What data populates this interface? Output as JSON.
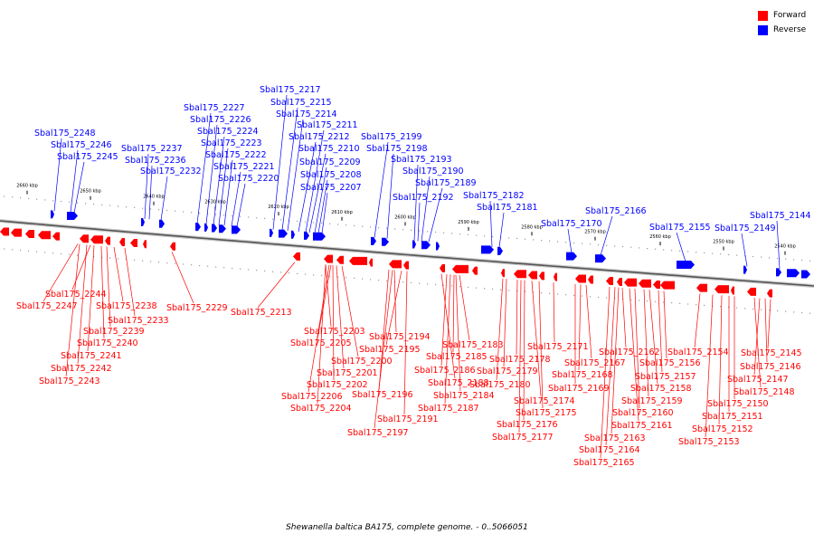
{
  "legend": [
    {
      "label": "Forward",
      "color": "#ff0000"
    },
    {
      "label": "Reverse",
      "color": "#0000ff"
    }
  ],
  "colors": {
    "forward": "#ff0000",
    "reverse": "#0000ff",
    "backbone": "#888888"
  },
  "caption": "Shewanella baltica BA175, complete genome. - 0..5066051",
  "ticks": [
    "2660 kbp",
    "2650 kbp",
    "2640 kbp",
    "2630 kbp",
    "2620 kbp",
    "2610 kbp",
    "2600 kbp",
    "2590 kbp",
    "2580 kbp",
    "2570 kbp",
    "2560 kbp",
    "2550 kbp",
    "2540 kbp"
  ],
  "reverse_labels": [
    "Sbal175_2248",
    "Sbal175_2246",
    "Sbal175_2245",
    "Sbal175_2237",
    "Sbal175_2236",
    "Sbal175_2232",
    "Sbal175_2227",
    "Sbal175_2226",
    "Sbal175_2224",
    "Sbal175_2223",
    "Sbal175_2222",
    "Sbal175_2221",
    "Sbal175_2220",
    "Sbal175_2217",
    "Sbal175_2215",
    "Sbal175_2214",
    "Sbal175_2211",
    "Sbal175_2212",
    "Sbal175_2210",
    "Sbal175_2209",
    "Sbal175_2208",
    "Sbal175_2207",
    "Sbal175_2199",
    "Sbal175_2198",
    "Sbal175_2193",
    "Sbal175_2190",
    "Sbal175_2189",
    "Sbal175_2192",
    "Sbal175_2182",
    "Sbal175_2181",
    "Sbal175_2170",
    "Sbal175_2166",
    "Sbal175_2155",
    "Sbal175_2149",
    "Sbal175_2144"
  ],
  "forward_labels": [
    "Sbal175_2244",
    "Sbal175_2247",
    "Sbal175_2238",
    "Sbal175_2233",
    "Sbal175_2239",
    "Sbal175_2240",
    "Sbal175_2241",
    "Sbal175_2242",
    "Sbal175_2243",
    "Sbal175_2229",
    "Sbal175_2213",
    "Sbal175_2203",
    "Sbal175_2205",
    "Sbal175_2200",
    "Sbal175_2201",
    "Sbal175_2202",
    "Sbal175_2206",
    "Sbal175_2204",
    "Sbal175_2194",
    "Sbal175_2195",
    "Sbal175_2196",
    "Sbal175_2191",
    "Sbal175_2197",
    "Sbal175_2183",
    "Sbal175_2185",
    "Sbal175_2186",
    "Sbal175_2188",
    "Sbal175_2187",
    "Sbal175_2184",
    "Sbal175_2178",
    "Sbal175_2179",
    "Sbal175_2180",
    "Sbal175_2174",
    "Sbal175_2175",
    "Sbal175_2176",
    "Sbal175_2177",
    "Sbal175_2171",
    "Sbal175_2167",
    "Sbal175_2168",
    "Sbal175_2169",
    "Sbal175_2162",
    "Sbal175_2163",
    "Sbal175_2164",
    "Sbal175_2165",
    "Sbal175_2161",
    "Sbal175_2160",
    "Sbal175_2159",
    "Sbal175_2158",
    "Sbal175_2157",
    "Sbal175_2156",
    "Sbal175_2154",
    "Sbal175_2150",
    "Sbal175_2151",
    "Sbal175_2152",
    "Sbal175_2153",
    "Sbal175_2148",
    "Sbal175_2147",
    "Sbal175_2146",
    "Sbal175_2145"
  ]
}
